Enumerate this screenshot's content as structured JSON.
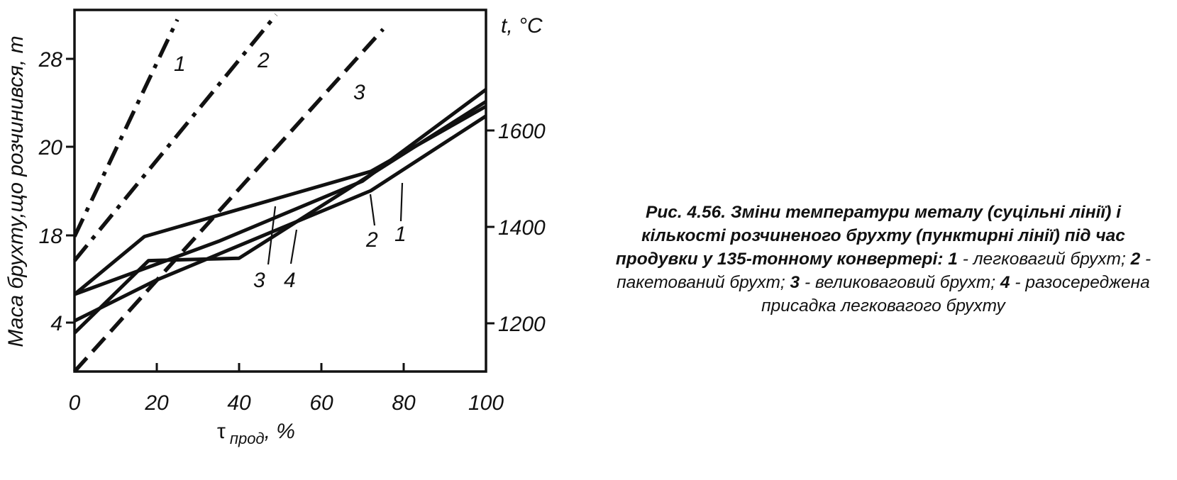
{
  "chart_data": {
    "type": "line",
    "x_axis": {
      "label_symbol": "τ",
      "label_subscript": "прод",
      "label_unit": ", %",
      "range": [
        0,
        100
      ],
      "ticks": [
        "0",
        "20",
        "40",
        "60",
        "80",
        "100"
      ]
    },
    "left_axis": {
      "label": "Маса брухту,що розчинився, т",
      "ticks": [
        "4",
        "18",
        "20",
        "28"
      ]
    },
    "right_axis": {
      "label": "t, °C",
      "range": [
        1100,
        1850
      ],
      "ticks": [
        "1200",
        "1400",
        "1600"
      ]
    },
    "temperature_series": [
      {
        "name": "1",
        "style": "solid",
        "points": [
          [
            0,
            1260
          ],
          [
            17,
            1380
          ],
          [
            72,
            1515
          ],
          [
            100,
            1650
          ]
        ]
      },
      {
        "name": "2",
        "style": "solid",
        "points": [
          [
            0,
            1205
          ],
          [
            20,
            1290
          ],
          [
            72,
            1475
          ],
          [
            100,
            1630
          ]
        ]
      },
      {
        "name": "3",
        "style": "solid",
        "points": [
          [
            0,
            1180
          ],
          [
            18,
            1330
          ],
          [
            40,
            1335
          ],
          [
            100,
            1660
          ]
        ]
      },
      {
        "name": "4",
        "style": "solid",
        "points": [
          [
            0,
            1260
          ],
          [
            35,
            1370
          ],
          [
            70,
            1495
          ],
          [
            100,
            1685
          ]
        ]
      }
    ],
    "scrap_series": [
      {
        "name": "1",
        "style": "dash-dot",
        "points": [
          [
            0,
            1380
          ],
          [
            25,
            1830
          ]
        ]
      },
      {
        "name": "2",
        "style": "dash-dot",
        "points": [
          [
            0,
            1330
          ],
          [
            49,
            1840
          ]
        ]
      },
      {
        "name": "3",
        "style": "dashed",
        "points": [
          [
            0,
            1100
          ],
          [
            75,
            1810
          ]
        ]
      }
    ],
    "curve_labels": [
      "1",
      "2",
      "3",
      "1",
      "2",
      "3",
      "4"
    ]
  },
  "caption": {
    "fig_number": "Рис. 4.56.",
    "title": "Зміни температури металу (суцільні лінії) і кількості розчиненого брухту (пунктирні лінії) під час продувки у 135-тонному конвертері:",
    "item1_num": "1",
    "item1_text": " - легковагий брухт; ",
    "item2_num": "2",
    "item2_text": " - пакетований брухт; ",
    "item3_num": "3",
    "item3_text": " - великоваговий брухт; ",
    "item4_num": "4",
    "item4_text": " - разосереджена присадка легковагого брухту"
  }
}
